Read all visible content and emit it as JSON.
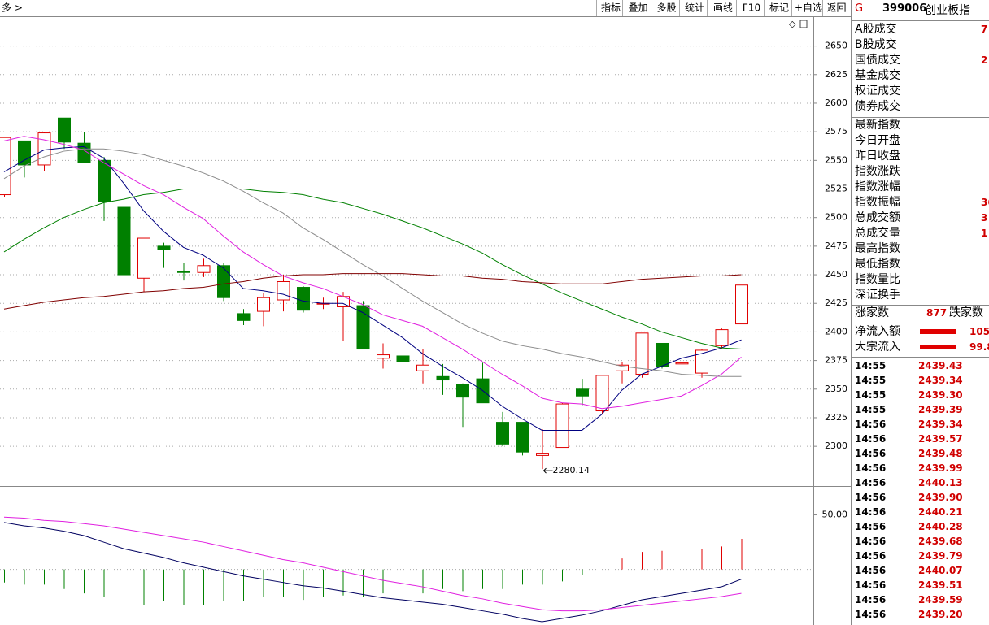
{
  "toolbar": {
    "left": "多 >",
    "buttons": [
      "指标",
      "叠加",
      "多股",
      "统计",
      "画线",
      "F10",
      "标记",
      "+自选",
      "返回"
    ]
  },
  "chart_data": [
    {
      "type": "candlestick",
      "open": [
        2520,
        2567,
        2546,
        2587,
        2565,
        2550,
        2509,
        2447,
        2475,
        2453,
        2452,
        2458,
        2416,
        2418,
        2428,
        2439,
        2425,
        2422,
        2423,
        2377,
        2379,
        2366,
        2361,
        2354,
        2359,
        2321,
        2321,
        2292,
        2299,
        2350,
        2331,
        2366,
        2363,
        2390,
        2372,
        2364,
        2388,
        2407
      ],
      "high": [
        2570,
        2567,
        2575,
        2587,
        2575,
        2553,
        2512,
        2482,
        2478,
        2460,
        2464,
        2460,
        2420,
        2434,
        2450,
        2440,
        2430,
        2435,
        2427,
        2390,
        2385,
        2385,
        2372,
        2355,
        2373,
        2330,
        2321,
        2315,
        2338,
        2359,
        2362,
        2374,
        2399,
        2390,
        2377,
        2385,
        2403,
        2441
      ],
      "low": [
        2518,
        2535,
        2541,
        2560,
        2548,
        2497,
        2450,
        2435,
        2456,
        2445,
        2448,
        2427,
        2406,
        2405,
        2418,
        2417,
        2420,
        2392,
        2385,
        2368,
        2372,
        2355,
        2345,
        2317,
        2338,
        2300,
        2292,
        2280.14,
        2299,
        2336,
        2328,
        2355,
        2360,
        2368,
        2365,
        2360,
        2385,
        2407
      ],
      "close": [
        2570,
        2546,
        2574,
        2566,
        2548,
        2514,
        2450,
        2482,
        2472,
        2452,
        2458,
        2430,
        2410,
        2430,
        2444,
        2419,
        2425,
        2431,
        2385,
        2380,
        2374,
        2371,
        2358,
        2343,
        2338,
        2302,
        2295,
        2294,
        2337,
        2344,
        2362,
        2371,
        2399,
        2370,
        2373,
        2384,
        2402,
        2441
      ],
      "up_color": "#e00000",
      "down_color": "#008000",
      "low_annotation_index": 27,
      "series": [
        {
          "color": "#000080",
          "values": [
            2540,
            2550,
            2559,
            2561,
            2562,
            2552,
            2530,
            2506,
            2488,
            2474,
            2467,
            2456,
            2438,
            2436,
            2433,
            2427,
            2425,
            2425,
            2417,
            2406,
            2395,
            2381,
            2370,
            2360,
            2349,
            2335,
            2324,
            2314,
            2314,
            2314,
            2328,
            2349,
            2363,
            2370,
            2377,
            2381,
            2386,
            2393
          ]
        },
        {
          "color": "#e020e0",
          "values": [
            2567,
            2571,
            2568,
            2564,
            2559,
            2548,
            2538,
            2528,
            2520,
            2509,
            2499,
            2484,
            2470,
            2459,
            2449,
            2443,
            2438,
            2431,
            2424,
            2415,
            2410,
            2405,
            2395,
            2385,
            2374,
            2363,
            2353,
            2342,
            2338,
            2337,
            2333,
            2335,
            2338,
            2341,
            2344,
            2353,
            2363,
            2378
          ]
        },
        {
          "color": "#8c8c8c",
          "values": [
            2534,
            2545,
            2553,
            2558,
            2560,
            2560,
            2558,
            2555,
            2550,
            2545,
            2539,
            2532,
            2523,
            2513,
            2504,
            2491,
            2481,
            2470,
            2459,
            2449,
            2438,
            2427,
            2417,
            2407,
            2399,
            2392,
            2388,
            2385,
            2381,
            2378,
            2374,
            2370,
            2368,
            2366,
            2363,
            2362,
            2361,
            2361
          ]
        },
        {
          "color": "#008000",
          "values": [
            2470,
            2481,
            2491,
            2500,
            2507,
            2513,
            2516,
            2520,
            2522,
            2525,
            2525,
            2525,
            2525,
            2523,
            2522,
            2520,
            2516,
            2513,
            2508,
            2503,
            2497,
            2491,
            2484,
            2477,
            2469,
            2459,
            2450,
            2442,
            2434,
            2427,
            2420,
            2413,
            2407,
            2400,
            2395,
            2390,
            2386,
            2385
          ]
        },
        {
          "color": "#800000",
          "values": [
            2420,
            2423,
            2426,
            2428,
            2430,
            2431,
            2433,
            2435,
            2436,
            2438,
            2439,
            2442,
            2444,
            2447,
            2449,
            2450,
            2450,
            2451,
            2451,
            2451,
            2451,
            2450,
            2449,
            2449,
            2447,
            2446,
            2444,
            2443,
            2442,
            2442,
            2442,
            2444,
            2446,
            2447,
            2448,
            2449,
            2449,
            2450
          ]
        }
      ],
      "ylim": [
        2266,
        2676
      ],
      "yticks": [
        2300,
        2325,
        2350,
        2375,
        2400,
        2425,
        2450,
        2475,
        2500,
        2525,
        2550,
        2575,
        2600,
        2625,
        2650
      ],
      "grid": true
    },
    {
      "type": "bar",
      "values": [
        -12,
        -14,
        -14,
        -18,
        -22,
        -25,
        -33,
        -33,
        -29,
        -33,
        -33,
        -29,
        -29,
        -25,
        -25,
        -28,
        -25,
        -24,
        -25,
        -22,
        -22,
        -22,
        -18,
        -20,
        -18,
        -18,
        -14,
        -14,
        -11,
        -5,
        0,
        10,
        16,
        17,
        18,
        19,
        21,
        28
      ],
      "up_color": "#e00000",
      "down_color": "#008000",
      "series": [
        {
          "color": "#000060",
          "values": [
            43,
            40,
            38,
            35,
            31,
            25,
            19,
            15,
            11,
            6,
            2,
            -2,
            -6,
            -9,
            -12,
            -15,
            -17,
            -20,
            -23,
            -26,
            -28,
            -30,
            -32,
            -35,
            -38,
            -41,
            -45,
            -48,
            -45,
            -42,
            -38,
            -33,
            -28,
            -25,
            -22,
            -19,
            -16,
            -9
          ]
        },
        {
          "color": "#e020e0",
          "values": [
            48,
            47,
            45,
            44,
            42,
            40,
            37,
            34,
            31,
            28,
            25,
            21,
            17,
            13,
            9,
            6,
            2,
            -2,
            -6,
            -10,
            -13,
            -16,
            -20,
            -24,
            -27,
            -31,
            -34,
            -37,
            -38,
            -38,
            -37,
            -35,
            -33,
            -31,
            -29,
            -27,
            -25,
            -22
          ]
        }
      ],
      "ylim": [
        -51,
        75
      ],
      "yticks": [
        {
          "value": 50,
          "label": "50.00"
        }
      ]
    }
  ],
  "quote": {
    "market": "G",
    "code": "399006",
    "name": "创业板指",
    "group1": [
      {
        "label": "A股成交",
        "value": "7"
      },
      {
        "label": "B股成交"
      },
      {
        "label": "国债成交",
        "value": "2"
      },
      {
        "label": "基金成交"
      },
      {
        "label": "权证成交"
      },
      {
        "label": "债券成交"
      }
    ],
    "group2": [
      {
        "label": "最新指数"
      },
      {
        "label": "今日开盘"
      },
      {
        "label": "昨日收盘"
      },
      {
        "label": "指数涨跌"
      },
      {
        "label": "指数涨幅"
      },
      {
        "label": "指数振幅",
        "value": "36"
      },
      {
        "label": "总成交额",
        "value": "3"
      },
      {
        "label": "总成交量",
        "value": "1"
      },
      {
        "label": "最高指数"
      },
      {
        "label": "最低指数"
      },
      {
        "label": "指数量比"
      },
      {
        "label": "深证换手"
      }
    ],
    "breadth": {
      "label": "涨家数",
      "value": "877",
      "label2": "跌家数"
    },
    "flows": [
      {
        "label": "净流入额",
        "value": "105"
      },
      {
        "label": "大宗流入",
        "value": "99.8"
      }
    ]
  },
  "trades": [
    {
      "time": "14:55",
      "price": "2439.43"
    },
    {
      "time": "14:55",
      "price": "2439.34"
    },
    {
      "time": "14:55",
      "price": "2439.30"
    },
    {
      "time": "14:55",
      "price": "2439.39"
    },
    {
      "time": "14:56",
      "price": "2439.34"
    },
    {
      "time": "14:56",
      "price": "2439.57"
    },
    {
      "time": "14:56",
      "price": "2439.48"
    },
    {
      "time": "14:56",
      "price": "2439.99"
    },
    {
      "time": "14:56",
      "price": "2440.13"
    },
    {
      "time": "14:56",
      "price": "2439.90"
    },
    {
      "time": "14:56",
      "price": "2440.21"
    },
    {
      "time": "14:56",
      "price": "2440.28"
    },
    {
      "time": "14:56",
      "price": "2439.68"
    },
    {
      "time": "14:56",
      "price": "2439.79"
    },
    {
      "time": "14:56",
      "price": "2440.07"
    },
    {
      "time": "14:56",
      "price": "2439.51"
    },
    {
      "time": "14:56",
      "price": "2439.59"
    },
    {
      "time": "14:56",
      "price": "2439.20"
    }
  ]
}
